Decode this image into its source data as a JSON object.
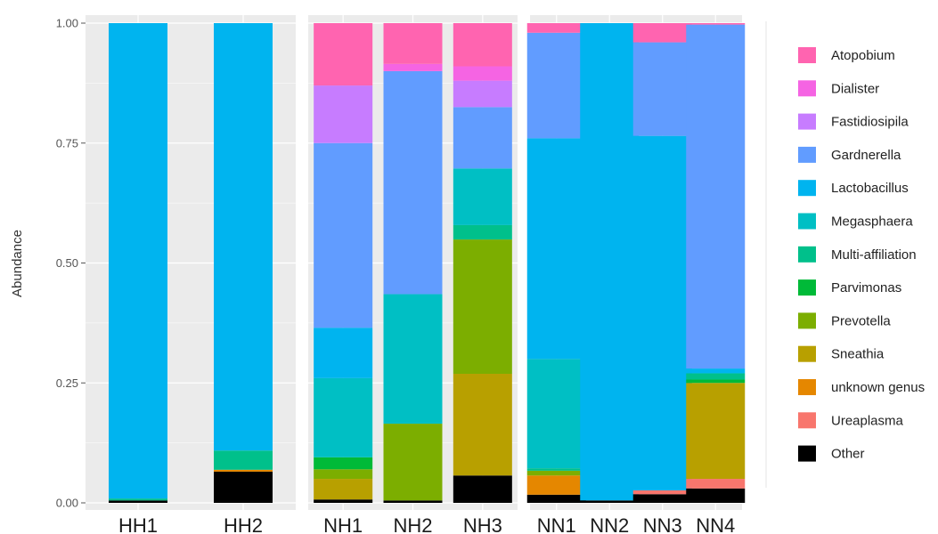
{
  "chart_data": {
    "type": "bar",
    "stacked": true,
    "ylabel": "Abundance",
    "xlabel": "",
    "ylim": [
      0,
      1
    ],
    "yticks": [
      0,
      0.25,
      0.5,
      0.75,
      1
    ],
    "ytick_labels": [
      "0.00",
      "0.25",
      "0.50",
      "0.75",
      "1.00"
    ],
    "grid": true,
    "legend_position": "right",
    "panels": [
      {
        "categories": [
          "HH1",
          "HH2"
        ]
      },
      {
        "categories": [
          "NH1",
          "NH2",
          "NH3"
        ]
      },
      {
        "categories": [
          "NN1",
          "NN2",
          "NN3",
          "NN4"
        ]
      }
    ],
    "series": [
      {
        "name": "Other",
        "color": "#000000",
        "values": {
          "HH1": 0.005,
          "HH2": 0.065,
          "NH1": 0.007,
          "NH2": 0.005,
          "NH3": 0.057,
          "NN1": 0.017,
          "NN2": 0.005,
          "NN3": 0.018,
          "NN4": 0.03
        }
      },
      {
        "name": "Ureaplasma",
        "color": "#f8766d",
        "values": {
          "HH1": 0,
          "HH2": 0,
          "NH1": 0,
          "NH2": 0,
          "NH3": 0,
          "NN1": 0,
          "NN2": 0,
          "NN3": 0.008,
          "NN4": 0.02
        }
      },
      {
        "name": "unknown genus",
        "color": "#e58700",
        "values": {
          "HH1": 0,
          "HH2": 0.004,
          "NH1": 0,
          "NH2": 0,
          "NH3": 0,
          "NN1": 0.04,
          "NN2": 0,
          "NN3": 0,
          "NN4": 0
        }
      },
      {
        "name": "Sneathia",
        "color": "#b8a000",
        "values": {
          "HH1": 0,
          "HH2": 0,
          "NH1": 0.043,
          "NH2": 0,
          "NH3": 0.212,
          "NN1": 0,
          "NN2": 0,
          "NN3": 0,
          "NN4": 0.2
        }
      },
      {
        "name": "Prevotella",
        "color": "#7cae00",
        "values": {
          "HH1": 0,
          "HH2": 0,
          "NH1": 0.02,
          "NH2": 0.16,
          "NH3": 0.28,
          "NN1": 0.01,
          "NN2": 0,
          "NN3": 0,
          "NN4": 0
        }
      },
      {
        "name": "Parvimonas",
        "color": "#00ba38",
        "values": {
          "HH1": 0,
          "HH2": 0,
          "NH1": 0.025,
          "NH2": 0,
          "NH3": 0,
          "NN1": 0,
          "NN2": 0,
          "NN3": 0,
          "NN4": 0.007
        }
      },
      {
        "name": "Multi-affiliation",
        "color": "#00c08b",
        "values": {
          "HH1": 0.004,
          "HH2": 0.04,
          "NH1": 0,
          "NH2": 0,
          "NH3": 0.03,
          "NN1": 0.005,
          "NN2": 0,
          "NN3": 0,
          "NN4": 0.013
        }
      },
      {
        "name": "Megasphaera",
        "color": "#00bfc4",
        "values": {
          "HH1": 0,
          "HH2": 0,
          "NH1": 0.165,
          "NH2": 0.27,
          "NH3": 0.118,
          "NN1": 0.228,
          "NN2": 0,
          "NN3": 0,
          "NN4": 0
        }
      },
      {
        "name": "Lactobacillus",
        "color": "#00b4ef",
        "values": {
          "HH1": 0.991,
          "HH2": 0.891,
          "NH1": 0.105,
          "NH2": 0,
          "NH3": 0,
          "NN1": 0.46,
          "NN2": 0.995,
          "NN3": 0.739,
          "NN4": 0.01
        }
      },
      {
        "name": "Gardnerella",
        "color": "#619cff",
        "values": {
          "HH1": 0,
          "HH2": 0,
          "NH1": 0.385,
          "NH2": 0.465,
          "NH3": 0.128,
          "NN1": 0.22,
          "NN2": 0,
          "NN3": 0.195,
          "NN4": 0.717
        }
      },
      {
        "name": "Fastidiosipila",
        "color": "#c77cff",
        "values": {
          "HH1": 0,
          "HH2": 0,
          "NH1": 0.12,
          "NH2": 0,
          "NH3": 0.055,
          "NN1": 0,
          "NN2": 0,
          "NN3": 0,
          "NN4": 0
        }
      },
      {
        "name": "Dialister",
        "color": "#f564e3",
        "values": {
          "HH1": 0,
          "HH2": 0,
          "NH1": 0,
          "NH2": 0.015,
          "NH3": 0.03,
          "NN1": 0,
          "NN2": 0,
          "NN3": 0,
          "NN4": 0
        }
      },
      {
        "name": "Atopobium",
        "color": "#ff64b0",
        "values": {
          "HH1": 0,
          "HH2": 0,
          "NH1": 0.13,
          "NH2": 0.085,
          "NH3": 0.09,
          "NN1": 0.02,
          "NN2": 0,
          "NN3": 0.04,
          "NN4": 0.003
        }
      }
    ],
    "legend_order": [
      "Atopobium",
      "Dialister",
      "Fastidiosipila",
      "Gardnerella",
      "Lactobacillus",
      "Megasphaera",
      "Multi-affiliation",
      "Parvimonas",
      "Prevotella",
      "Sneathia",
      "unknown genus",
      "Ureaplasma",
      "Other"
    ]
  },
  "style": {
    "panel_background": "#ebebeb",
    "gridline_color": "#ffffff"
  }
}
